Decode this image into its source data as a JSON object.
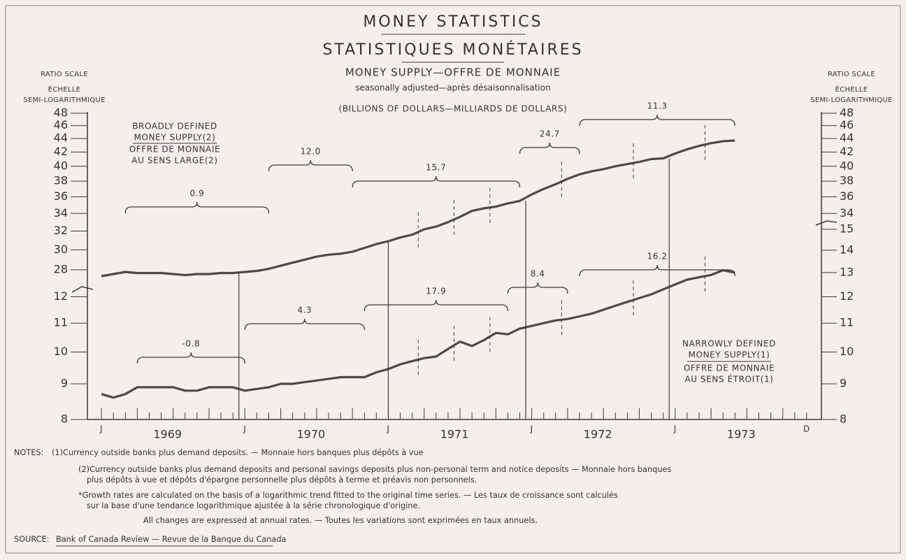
{
  "header": {
    "title": "MONEY STATISTICS",
    "title_fr": "STATISTIQUES MONÉTAIRES",
    "subtitle": "MONEY SUPPLY—OFFRE DE MONNAIE",
    "subtitle2": "seasonally adjusted—après désaisonnalisation",
    "units": "(BILLIONS OF DOLLARS—MILLIARDS DE DOLLARS)",
    "left_axis_label": [
      "RATIO SCALE",
      "ÉCHELLE",
      "SEMI-LOGARITHMIQUE"
    ],
    "right_axis_label": [
      "RATIO SCALE",
      "ÉCHELLE",
      "SEMI-LOGARITHMIQUE"
    ]
  },
  "chart_data": [
    {
      "type": "line",
      "log_scale": true,
      "ylim": [
        28,
        48
      ],
      "yticks": [
        28,
        30,
        32,
        34,
        36,
        38,
        40,
        42,
        44,
        46,
        48
      ],
      "y2lim": [
        28,
        48
      ],
      "y2ticks": [
        34,
        36,
        38,
        40,
        42,
        44,
        46,
        48
      ],
      "xlim": [
        "1968-12",
        "1974-01"
      ],
      "x": [
        "1969-01",
        "1969-02",
        "1969-03",
        "1969-04",
        "1969-05",
        "1969-06",
        "1969-07",
        "1969-08",
        "1969-09",
        "1969-10",
        "1969-11",
        "1969-12",
        "1970-01",
        "1970-02",
        "1970-03",
        "1970-04",
        "1970-05",
        "1970-06",
        "1970-07",
        "1970-08",
        "1970-09",
        "1970-10",
        "1970-11",
        "1970-12",
        "1971-01",
        "1971-02",
        "1971-03",
        "1971-04",
        "1971-05",
        "1971-06",
        "1971-07",
        "1971-08",
        "1971-09",
        "1971-10",
        "1971-11",
        "1971-12",
        "1972-01",
        "1972-02",
        "1972-03",
        "1972-04",
        "1972-05",
        "1972-06",
        "1972-07",
        "1972-08",
        "1972-09",
        "1972-10",
        "1972-11",
        "1972-12",
        "1973-01",
        "1973-02",
        "1973-03",
        "1973-04",
        "1973-05",
        "1973-06"
      ],
      "series": [
        {
          "name": [
            "BROADLY DEFINED",
            "MONEY SUPPLY(2)"
          ],
          "name_fr": [
            "OFFRE DE MONNAIE",
            "AU SENS LARGE(2)"
          ],
          "color": "#4a4a4a",
          "values": [
            27.4,
            27.6,
            27.8,
            27.7,
            27.7,
            27.7,
            27.6,
            27.5,
            27.6,
            27.6,
            27.7,
            27.7,
            27.8,
            27.9,
            28.1,
            28.4,
            28.7,
            29.0,
            29.3,
            29.5,
            29.6,
            29.8,
            30.2,
            30.6,
            30.9,
            31.3,
            31.6,
            32.2,
            32.5,
            33.0,
            33.6,
            34.3,
            34.6,
            34.8,
            35.2,
            35.5,
            36.3,
            37.0,
            37.6,
            38.3,
            38.9,
            39.3,
            39.6,
            40.0,
            40.3,
            40.6,
            41.0,
            41.1,
            41.8,
            42.4,
            42.9,
            43.3,
            43.6,
            43.7
          ]
        }
      ],
      "growth_rates": [
        {
          "label": "0.9",
          "start": "1969-03",
          "end": "1970-03"
        },
        {
          "label": "12.0",
          "start": "1970-03",
          "end": "1970-10"
        },
        {
          "label": "15.7",
          "start": "1970-10",
          "end": "1971-12"
        },
        {
          "label": "24.7",
          "start": "1971-12",
          "end": "1972-05"
        },
        {
          "label": "11.3",
          "start": "1972-05",
          "end": "1973-06"
        }
      ]
    },
    {
      "type": "line",
      "log_scale": true,
      "ylim": [
        8,
        15
      ],
      "yticks": [
        8,
        9,
        10,
        11,
        12
      ],
      "y2lim": [
        8,
        15
      ],
      "y2ticks": [
        8,
        9,
        10,
        11,
        12,
        13,
        14,
        15
      ],
      "xlim": [
        "1968-12",
        "1974-01"
      ],
      "xticks": [
        {
          "value": "1969-01",
          "label": "J"
        },
        {
          "value": "1970-01",
          "label": "J"
        },
        {
          "value": "1971-01",
          "label": "J"
        },
        {
          "value": "1972-01",
          "label": "J"
        },
        {
          "value": "1973-01",
          "label": "J"
        },
        {
          "value": "1973-12",
          "label": "D"
        }
      ],
      "year_labels": [
        "1969",
        "1970",
        "1971",
        "1972",
        "1973"
      ],
      "x": [
        "1969-01",
        "1969-02",
        "1969-03",
        "1969-04",
        "1969-05",
        "1969-06",
        "1969-07",
        "1969-08",
        "1969-09",
        "1969-10",
        "1969-11",
        "1969-12",
        "1970-01",
        "1970-02",
        "1970-03",
        "1970-04",
        "1970-05",
        "1970-06",
        "1970-07",
        "1970-08",
        "1970-09",
        "1970-10",
        "1970-11",
        "1970-12",
        "1971-01",
        "1971-02",
        "1971-03",
        "1971-04",
        "1971-05",
        "1971-06",
        "1971-07",
        "1971-08",
        "1971-09",
        "1971-10",
        "1971-11",
        "1971-12",
        "1972-01",
        "1972-02",
        "1972-03",
        "1972-04",
        "1972-05",
        "1972-06",
        "1972-07",
        "1972-08",
        "1972-09",
        "1972-10",
        "1972-11",
        "1972-12",
        "1973-01",
        "1973-02",
        "1973-03",
        "1973-04",
        "1973-05",
        "1973-06"
      ],
      "series": [
        {
          "name": [
            "NARROWLY DEFINED",
            "MONEY SUPPLY(1)"
          ],
          "name_fr": [
            "OFFRE DE MONNAIE",
            "AU SENS ÉTROIT(1)"
          ],
          "color": "#4a4a4a",
          "values": [
            8.7,
            8.6,
            8.7,
            8.9,
            8.9,
            8.9,
            8.9,
            8.8,
            8.8,
            8.9,
            8.9,
            8.9,
            8.8,
            8.85,
            8.9,
            9.0,
            9.0,
            9.05,
            9.1,
            9.15,
            9.2,
            9.2,
            9.2,
            9.35,
            9.45,
            9.6,
            9.7,
            9.8,
            9.85,
            10.1,
            10.35,
            10.2,
            10.4,
            10.65,
            10.6,
            10.8,
            10.9,
            11.0,
            11.1,
            11.15,
            11.25,
            11.35,
            11.5,
            11.65,
            11.8,
            11.95,
            12.1,
            12.3,
            12.5,
            12.7,
            12.8,
            12.9,
            13.1,
            13.0
          ]
        }
      ],
      "growth_rates": [
        {
          "label": "-0.8",
          "start": "1969-04",
          "end": "1970-01"
        },
        {
          "label": "4.3",
          "start": "1970-01",
          "end": "1970-11"
        },
        {
          "label": "17.9",
          "start": "1970-11",
          "end": "1971-11"
        },
        {
          "label": "8.4",
          "start": "1971-11",
          "end": "1972-04"
        },
        {
          "label": "16.2",
          "start": "1972-05",
          "end": "1973-06"
        }
      ]
    }
  ],
  "notes": {
    "label": "NOTES:",
    "note1": "(1)Currency outside banks plus demand deposits. — Monnaie hors banques plus dépôts à vue",
    "note2": [
      "(2)Currency outside banks plus demand deposits and personal savings deposits plus non-personal term and notice deposits — Monnaie hors banques",
      "plus dépôts à vue et dépôts d'épargne personnelle plus dépôts à terme et préavis non personnels."
    ],
    "note3": [
      "*Growth rates are calculated on the basis of a logarithmic trend fitted to the original time series. — Les taux de croissance sont calculés",
      "sur la base d'une tendance logarithmique ajustée à la série chronologique d'origine."
    ],
    "note4": "All changes are expressed at annual rates. — Toutes les variations sont exprimées en taux annuels."
  },
  "source": {
    "label": "SOURCE:",
    "text": "Bank of Canada Review — Revue de la Banque du Canada"
  }
}
